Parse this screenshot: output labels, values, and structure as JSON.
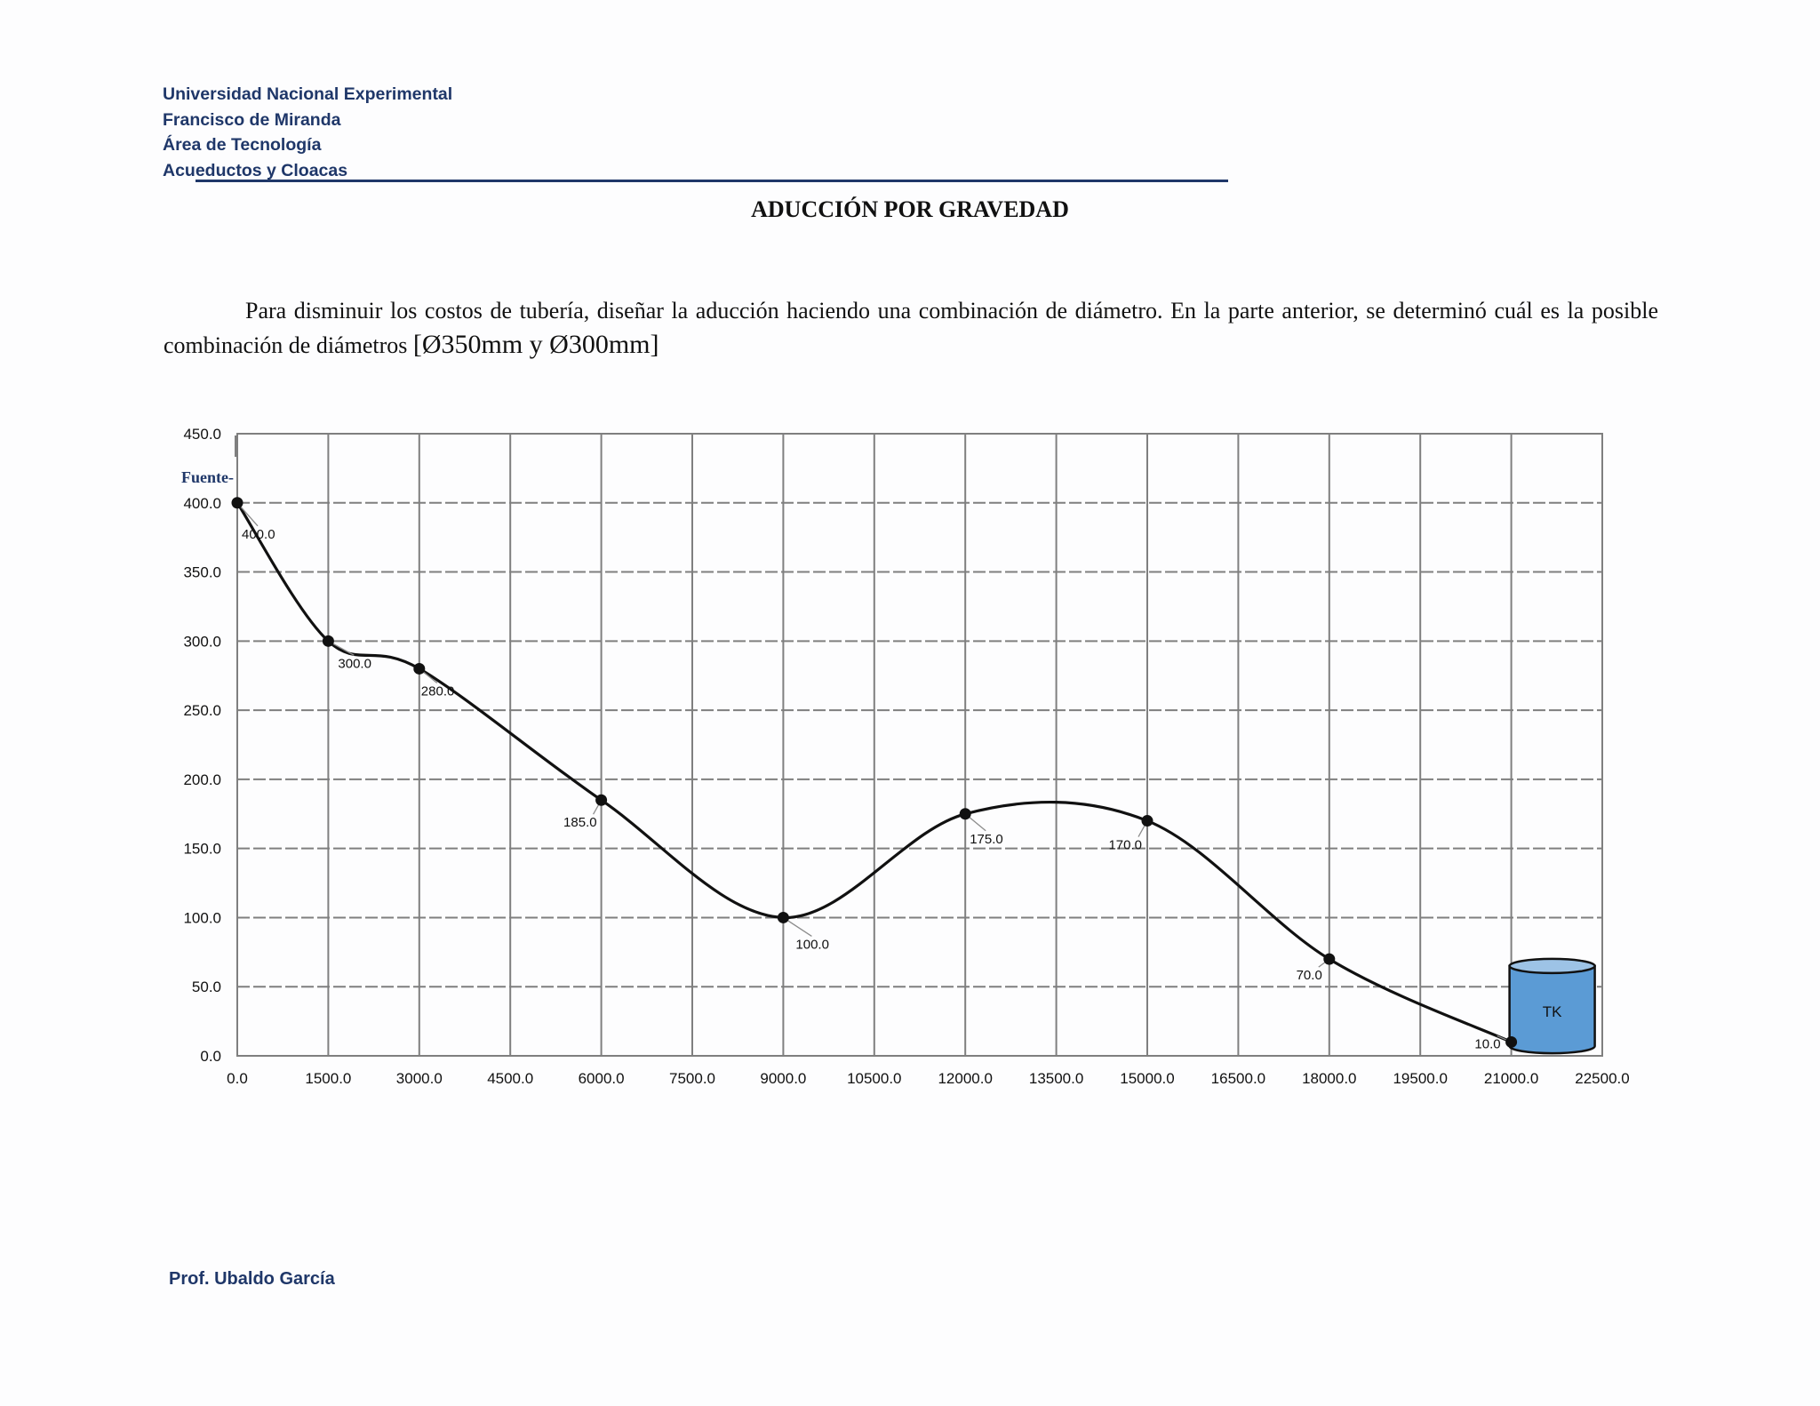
{
  "header": {
    "lines": [
      "Universidad Nacional Experimental",
      "Francisco de Miranda",
      "Área de Tecnología",
      "Acueductos y Cloacas"
    ]
  },
  "title": "ADUCCIÓN POR GRAVEDAD",
  "intro": {
    "text": "Para disminuir los costos de tubería, diseñar la aducción haciendo una combinación de diámetro. En la parte anterior, se determinó cuál es la posible combinación de diámetros ",
    "diameters": "[Ø350mm y Ø300mm]"
  },
  "chart_data": {
    "type": "line",
    "title": "",
    "xlabel": "",
    "ylabel": "",
    "x": [
      0,
      1500,
      3000,
      6000,
      9000,
      12000,
      15000,
      18000,
      21000
    ],
    "values": [
      400,
      300,
      280,
      185,
      100,
      175,
      170,
      70,
      10
    ],
    "data_labels": [
      "400.0",
      "300.0",
      "280.0",
      "185.0",
      "100.0",
      "175.0",
      "170.0",
      "70.0",
      "10.0"
    ],
    "xlim": [
      0,
      22500
    ],
    "ylim": [
      0,
      450
    ],
    "x_ticks": [
      "0.0",
      "1500.0",
      "3000.0",
      "4500.0",
      "6000.0",
      "7500.0",
      "9000.0",
      "10500.0",
      "12000.0",
      "13500.0",
      "15000.0",
      "16500.0",
      "18000.0",
      "19500.0",
      "21000.0",
      "22500.0"
    ],
    "y_ticks": [
      "0.0",
      "50.0",
      "100.0",
      "150.0",
      "200.0",
      "250.0",
      "300.0",
      "350.0",
      "400.0",
      "450.0"
    ],
    "grid": true,
    "source_label": "Fuente-",
    "tank_label": "TK",
    "colors": {
      "line": "#111111",
      "tank": "#5b9bd5",
      "tank_top": "#9dc3e6",
      "grid": "#7f7f7f"
    }
  },
  "footer": "Prof. Ubaldo García"
}
